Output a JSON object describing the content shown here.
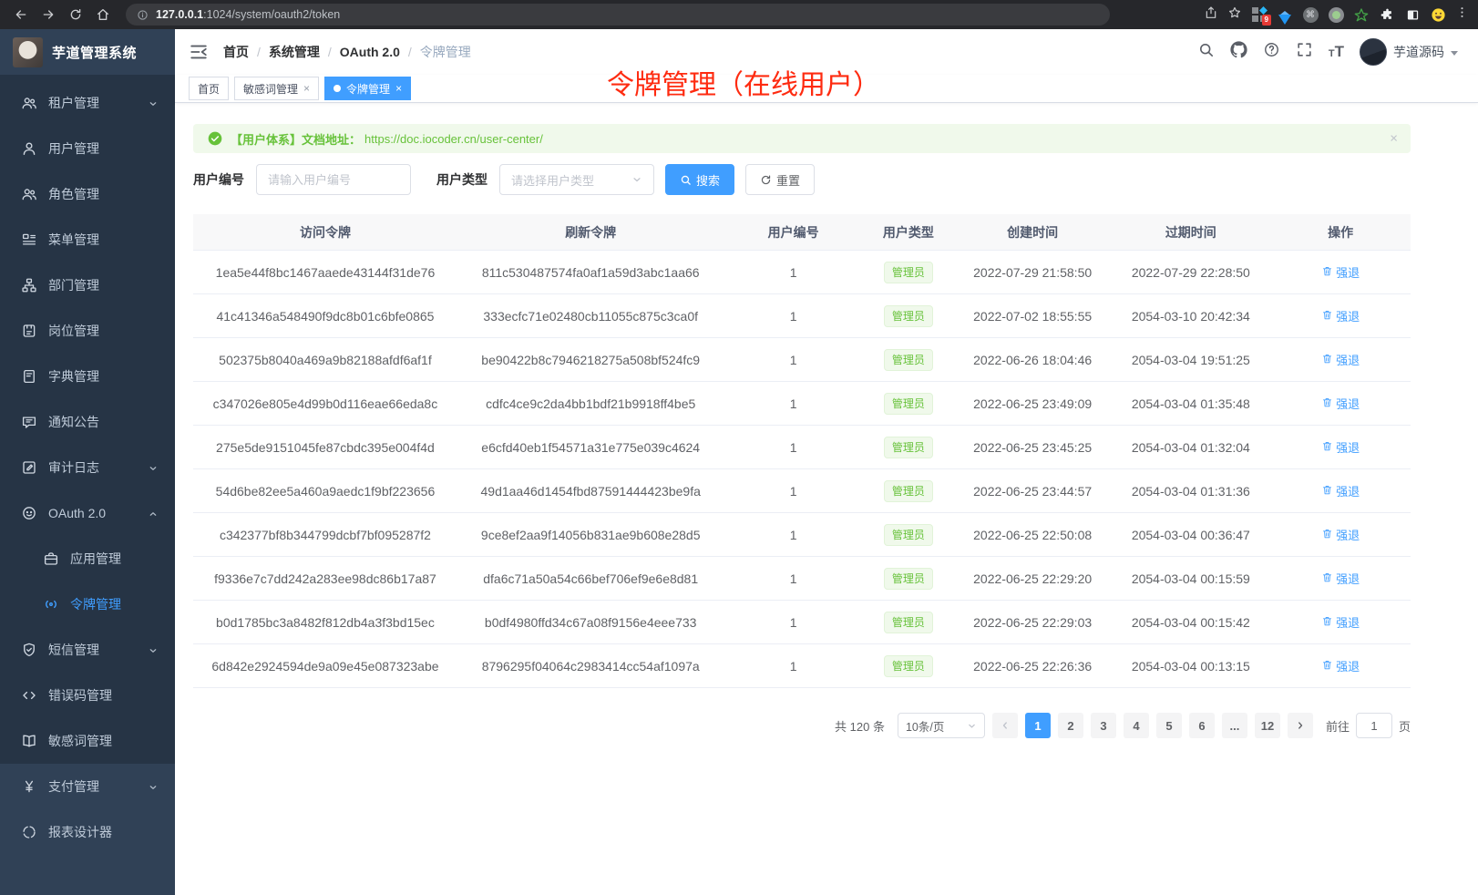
{
  "browser": {
    "url_host": "127.0.0.1",
    "url_path": ":1024/system/oauth2/token",
    "extension_badge": "9"
  },
  "sidebar": {
    "logo_title": "芋道管理系统",
    "items": [
      {
        "id": "tenant",
        "label": "租户管理",
        "icon": "users",
        "chevron": "down",
        "section": "system"
      },
      {
        "id": "user",
        "label": "用户管理",
        "icon": "user",
        "section": "system"
      },
      {
        "id": "role",
        "label": "角色管理",
        "icon": "users",
        "section": "system"
      },
      {
        "id": "menu",
        "label": "菜单管理",
        "icon": "menu",
        "section": "system"
      },
      {
        "id": "dept",
        "label": "部门管理",
        "icon": "tree",
        "section": "system"
      },
      {
        "id": "post",
        "label": "岗位管理",
        "icon": "badge",
        "section": "system"
      },
      {
        "id": "dict",
        "label": "字典管理",
        "icon": "dict",
        "section": "system"
      },
      {
        "id": "notice",
        "label": "通知公告",
        "icon": "notice",
        "section": "system"
      },
      {
        "id": "audit-log",
        "label": "审计日志",
        "icon": "audit",
        "chevron": "down",
        "section": "system"
      },
      {
        "id": "oauth2",
        "label": "OAuth 2.0",
        "icon": "oauth",
        "chevron": "up",
        "section": "system"
      },
      {
        "id": "oauth2-app",
        "label": "应用管理",
        "icon": "app",
        "section": "system",
        "child": true
      },
      {
        "id": "oauth2-token",
        "label": "令牌管理",
        "icon": "token",
        "section": "system",
        "child": true,
        "active": true
      },
      {
        "id": "sms",
        "label": "短信管理",
        "icon": "shield",
        "chevron": "down",
        "section": "system"
      },
      {
        "id": "error-code",
        "label": "错误码管理",
        "icon": "code",
        "section": "system"
      },
      {
        "id": "sensitive-word",
        "label": "敏感词管理",
        "icon": "book",
        "section": "system"
      },
      {
        "id": "pay",
        "label": "支付管理",
        "icon": "pay",
        "chevron": "down",
        "section": "root"
      },
      {
        "id": "report-designer",
        "label": "报表设计器",
        "icon": "report",
        "section": "root"
      }
    ]
  },
  "header": {
    "breadcrumbs": [
      "首页",
      "系统管理",
      "OAuth 2.0",
      "令牌管理"
    ],
    "username": "芋道源码"
  },
  "annotation": {
    "text": "令牌管理（在线用户）",
    "color": "#fe2b10"
  },
  "tabs": [
    {
      "label": "首页"
    },
    {
      "label": "敏感词管理",
      "closable": true
    },
    {
      "label": "令牌管理",
      "closable": true,
      "active": true
    }
  ],
  "alert": {
    "text": "【用户体系】文档地址：",
    "link": "https://doc.iocoder.cn/user-center/",
    "close_label": "×"
  },
  "filters": {
    "user_id_label": "用户编号",
    "user_id_placeholder": "请输入用户编号",
    "user_type_label": "用户类型",
    "user_type_placeholder": "请选择用户类型",
    "search_label": "搜索",
    "reset_label": "重置"
  },
  "table": {
    "columns": [
      "访问令牌",
      "刷新令牌",
      "用户编号",
      "用户类型",
      "创建时间",
      "过期时间",
      "操作"
    ],
    "action_label": "强退",
    "rows": [
      {
        "access_token": "1ea5e44f8bc1467aaede43144f31de76",
        "refresh_token": "811c530487574fa0af1a59d3abc1aa66",
        "user_id": "1",
        "user_type": "管理员",
        "created_at": "2022-07-29 21:58:50",
        "expires_at": "2022-07-29 22:28:50"
      },
      {
        "access_token": "41c41346a548490f9dc8b01c6bfe0865",
        "refresh_token": "333ecfc71e02480cb11055c875c3ca0f",
        "user_id": "1",
        "user_type": "管理员",
        "created_at": "2022-07-02 18:55:55",
        "expires_at": "2054-03-10 20:42:34"
      },
      {
        "access_token": "502375b8040a469a9b82188afdf6af1f",
        "refresh_token": "be90422b8c7946218275a508bf524fc9",
        "user_id": "1",
        "user_type": "管理员",
        "created_at": "2022-06-26 18:04:46",
        "expires_at": "2054-03-04 19:51:25"
      },
      {
        "access_token": "c347026e805e4d99b0d116eae66eda8c",
        "refresh_token": "cdfc4ce9c2da4bb1bdf21b9918ff4be5",
        "user_id": "1",
        "user_type": "管理员",
        "created_at": "2022-06-25 23:49:09",
        "expires_at": "2054-03-04 01:35:48"
      },
      {
        "access_token": "275e5de9151045fe87cbdc395e004f4d",
        "refresh_token": "e6cfd40eb1f54571a31e775e039c4624",
        "user_id": "1",
        "user_type": "管理员",
        "created_at": "2022-06-25 23:45:25",
        "expires_at": "2054-03-04 01:32:04"
      },
      {
        "access_token": "54d6be82ee5a460a9aedc1f9bf223656",
        "refresh_token": "49d1aa46d1454fbd87591444423be9fa",
        "user_id": "1",
        "user_type": "管理员",
        "created_at": "2022-06-25 23:44:57",
        "expires_at": "2054-03-04 01:31:36"
      },
      {
        "access_token": "c342377bf8b344799dcbf7bf095287f2",
        "refresh_token": "9ce8ef2aa9f14056b831ae9b608e28d5",
        "user_id": "1",
        "user_type": "管理员",
        "created_at": "2022-06-25 22:50:08",
        "expires_at": "2054-03-04 00:36:47"
      },
      {
        "access_token": "f9336e7c7dd242a283ee98dc86b17a87",
        "refresh_token": "dfa6c71a50a54c66bef706ef9e6e8d81",
        "user_id": "1",
        "user_type": "管理员",
        "created_at": "2022-06-25 22:29:20",
        "expires_at": "2054-03-04 00:15:59"
      },
      {
        "access_token": "b0d1785bc3a8482f812db4a3f3bd15ec",
        "refresh_token": "b0df4980ffd34c67a08f9156e4eee733",
        "user_id": "1",
        "user_type": "管理员",
        "created_at": "2022-06-25 22:29:03",
        "expires_at": "2054-03-04 00:15:42"
      },
      {
        "access_token": "6d842e2924594de9a09e45e087323abe",
        "refresh_token": "8796295f04064c2983414cc54af1097a",
        "user_id": "1",
        "user_type": "管理员",
        "created_at": "2022-06-25 22:26:36",
        "expires_at": "2054-03-04 00:13:15"
      }
    ]
  },
  "pagination": {
    "total_text": "共 120 条",
    "page_size": "10条/页",
    "pages": [
      {
        "label": "1",
        "active": true
      },
      {
        "label": "2"
      },
      {
        "label": "3"
      },
      {
        "label": "4"
      },
      {
        "label": "5"
      },
      {
        "label": "6"
      },
      {
        "label": "...",
        "ellipsis": true
      },
      {
        "label": "12"
      }
    ],
    "goto_label": "前往",
    "goto_value": "1",
    "page_suffix": "页"
  },
  "colors": {
    "accent_blue": "#409eff",
    "success_green": "#67c23a",
    "annotation_red": "#fe2b10",
    "sidebar_bg": "#304156",
    "submenu_bg": "#263445"
  }
}
